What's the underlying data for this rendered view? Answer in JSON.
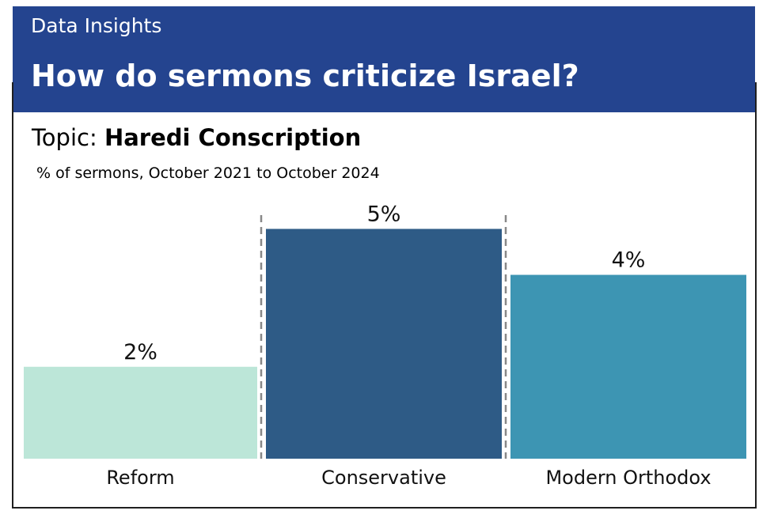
{
  "header": {
    "kicker": "Data Insights",
    "headline": "How do sermons criticize Israel?"
  },
  "topic": {
    "prefix": "Topic: ",
    "name": "Haredi Conscription"
  },
  "subtitle": "% of sermons, October 2021 to October 2024",
  "colors": {
    "header_bg": "#24448f",
    "reform": "#bce6d8",
    "conservative": "#2e5b86",
    "modern_orthodox": "#3d95b3",
    "separator": "#888888"
  },
  "chart_data": {
    "type": "bar",
    "categories": [
      "Reform",
      "Conservative",
      "Modern Orthodox"
    ],
    "values": [
      2,
      5,
      4
    ],
    "value_labels": [
      "2%",
      "5%",
      "4%"
    ],
    "unit": "%",
    "ylim": [
      0,
      5.3
    ],
    "grid": false,
    "legend": "none"
  }
}
